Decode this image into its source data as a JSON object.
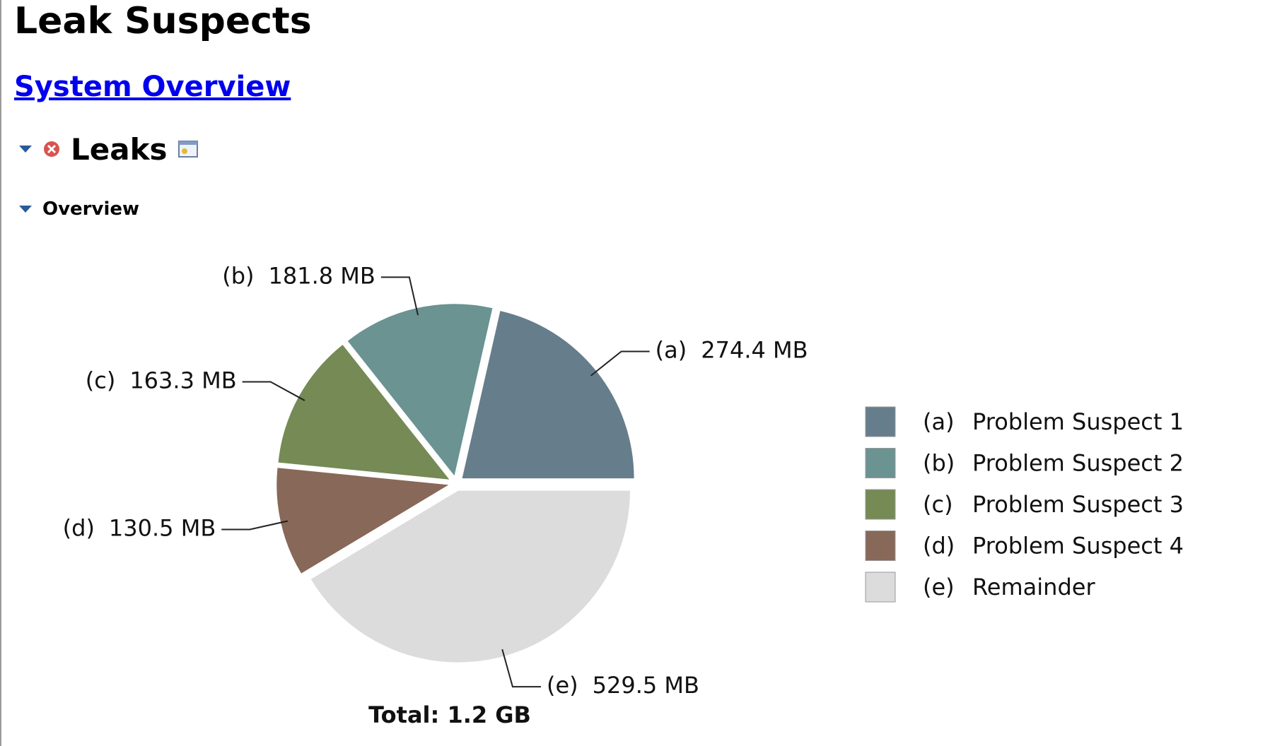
{
  "header": {
    "title": "Leak Suspects",
    "link": "System Overview",
    "section": "Leaks",
    "subsection": "Overview"
  },
  "chart_data": {
    "type": "pie",
    "keys": [
      "(a)",
      "(b)",
      "(c)",
      "(d)",
      "(e)"
    ],
    "categories": [
      "Problem Suspect 1",
      "Problem Suspect 2",
      "Problem Suspect 3",
      "Problem Suspect 4",
      "Remainder"
    ],
    "values": [
      274.4,
      181.8,
      163.3,
      130.5,
      529.5
    ],
    "value_labels": [
      "274.4 MB",
      "181.8 MB",
      "163.3 MB",
      "130.5 MB",
      "529.5 MB"
    ],
    "colors": [
      "#667d8c",
      "#6a9392",
      "#758a55",
      "#876859",
      "#dcdcdc"
    ],
    "total": "Total: 1.2 GB"
  }
}
